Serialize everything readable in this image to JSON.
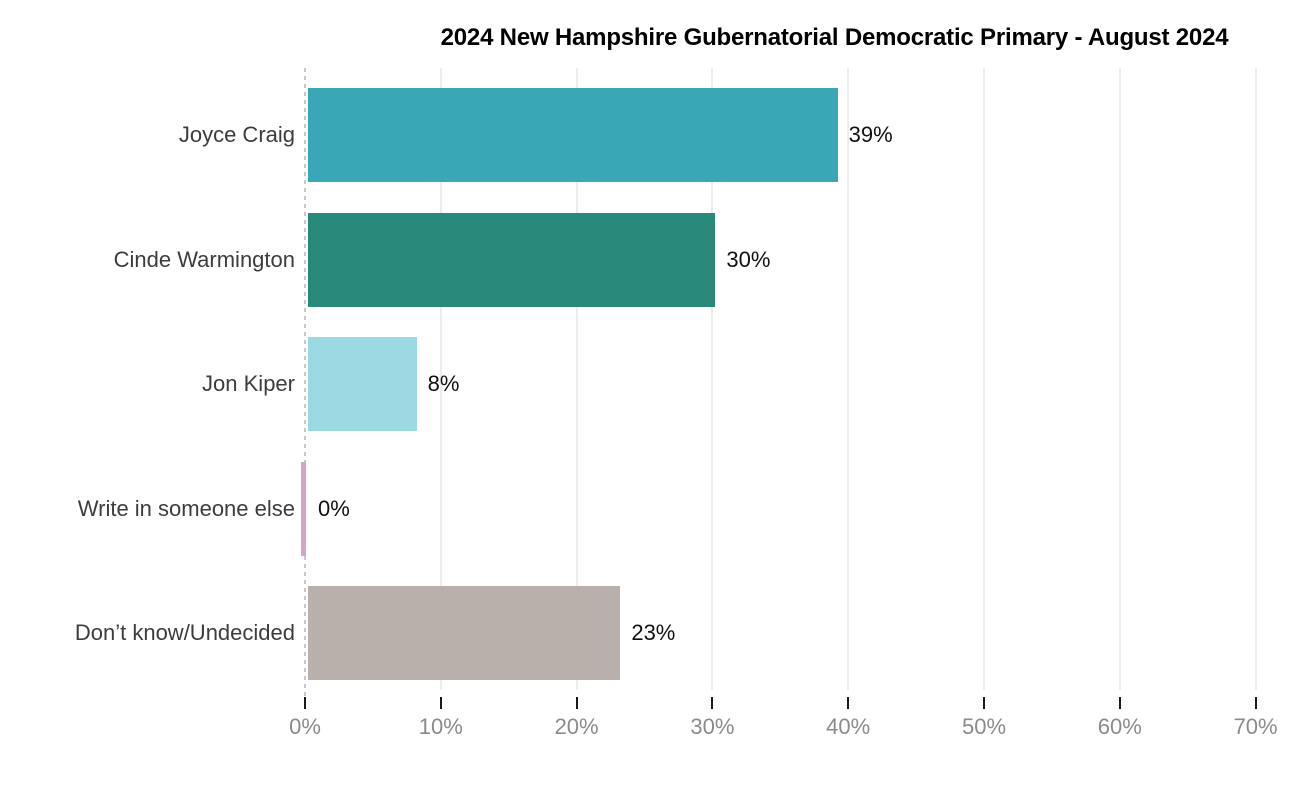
{
  "chart_data": {
    "type": "bar",
    "orientation": "horizontal",
    "title": "2024 New Hampshire Gubernatorial Democratic Primary - August 2024",
    "categories": [
      "Joyce Craig",
      "Cinde Warmington",
      "Jon Kiper",
      "Write in someone else",
      "Don’t know/Undecided"
    ],
    "values": [
      39,
      30,
      8,
      0,
      23
    ],
    "value_labels": [
      "39%",
      "30%",
      "8%",
      "0%",
      "23%"
    ],
    "bar_colors": [
      "#3AA7B7",
      "#298A7C",
      "#9BD9E3",
      "#D2A4C8",
      "#B9AFAB"
    ],
    "xlabel": "",
    "ylabel": "",
    "xlim": [
      0,
      70
    ],
    "x_tick_values": [
      0,
      10,
      20,
      30,
      40,
      50,
      60,
      70
    ],
    "x_tick_labels": [
      "0%",
      "10%",
      "20%",
      "30%",
      "40%",
      "50%",
      "60%",
      "70%"
    ],
    "grid": true,
    "zero_line_style": "dashed",
    "legend": false
  },
  "style_colors": {
    "background": "#ffffff",
    "title_text": "#000000",
    "category_label_text": "#3d3d3d",
    "value_label_text": "#111111",
    "axis_tick_label_text": "#8b8b8b",
    "axis_tick_mark": "#1a1a1a",
    "gridline": "#ececec",
    "zero_line": "#c9c9c9"
  }
}
